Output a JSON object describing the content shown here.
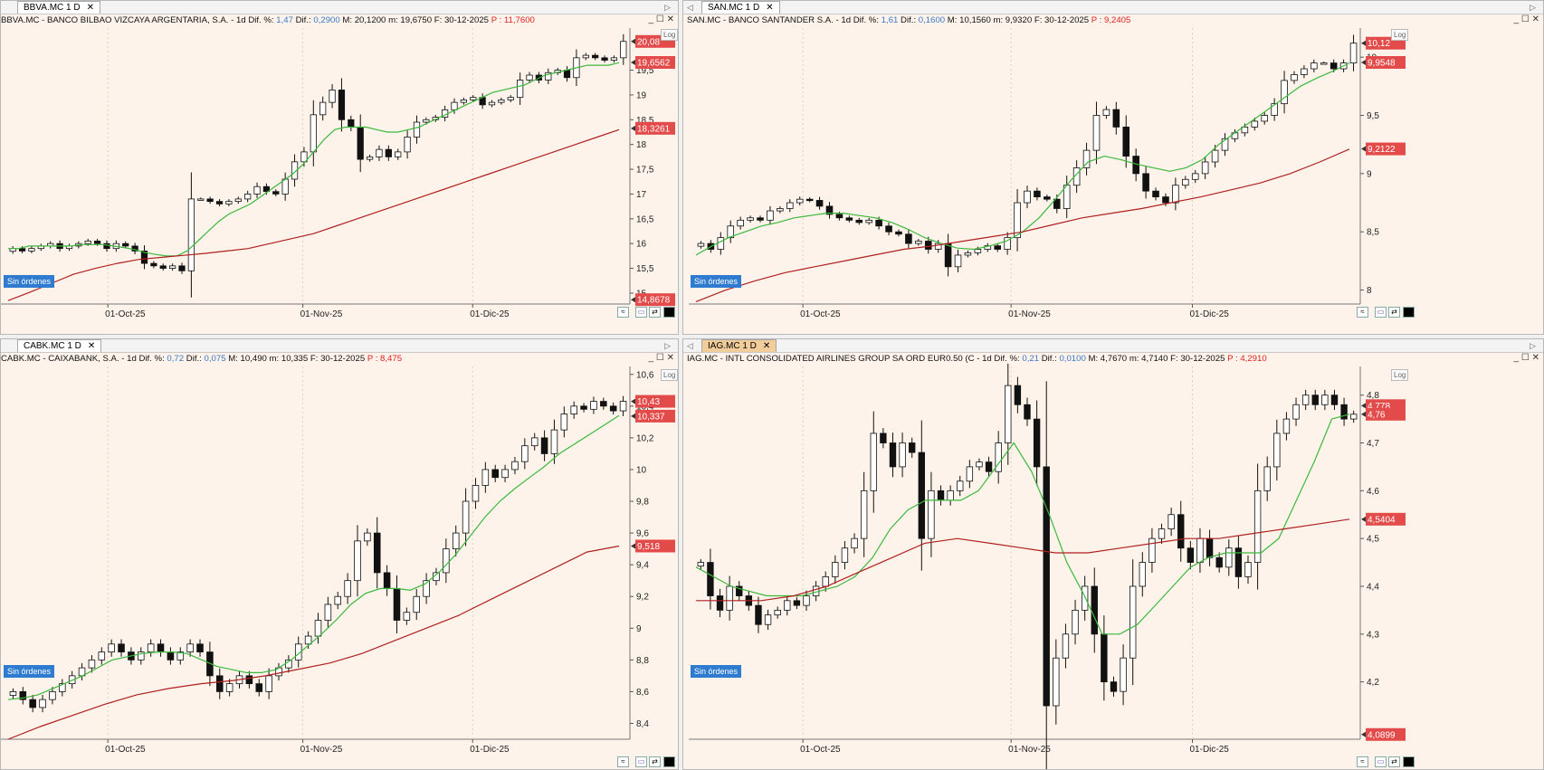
{
  "panels": [
    {
      "tab": "BBVA.MC 1 D",
      "header": {
        "name": "BBVA.MC - BANCO BILBAO VIZCAYA ARGENTARIA, S.A. - 1d",
        "dif_pct_label": "Dif. %:",
        "dif_pct": "1,47",
        "dif_label": "Dif.:",
        "dif": "0,2900",
        "max": "M: 20,1200",
        "min": "m: 19,6750",
        "date": "F: 30-12-2025",
        "price": "P : 11,7600"
      },
      "price_labels": [
        "20,08",
        "19,6562",
        "18,3261",
        "14,8678"
      ],
      "badge": "Sin órdenes",
      "log": "Log"
    },
    {
      "tab": "SAN.MC 1 D",
      "header": {
        "name": "SAN.MC - BANCO SANTANDER S.A. - 1d",
        "dif_pct_label": "Dif. %:",
        "dif_pct": "1,61",
        "dif_label": "Dif.:",
        "dif": "0,1600",
        "max": "M: 10,1560",
        "min": "m: 9,9320",
        "date": "F: 30-12-2025",
        "price": "P : 9,2405"
      },
      "price_labels": [
        "10,12",
        "9,9548",
        "9,2122"
      ],
      "badge": "Sin órdenes",
      "log": "Log"
    },
    {
      "tab": "CABK.MC 1 D",
      "header": {
        "name": "CABK.MC - CAIXABANK, S.A. - 1d",
        "dif_pct_label": "Dif. %:",
        "dif_pct": "0,72",
        "dif_label": "Dif.:",
        "dif": "0,075",
        "max": "M: 10,490",
        "min": "m: 10,335",
        "date": "F: 30-12-2025",
        "price": "P : 8,475"
      },
      "price_labels": [
        "10,43",
        "10,337",
        "9,518"
      ],
      "badge": "Sin órdenes",
      "log": "Log"
    },
    {
      "tab": "IAG.MC 1 D",
      "header": {
        "name": "IAG.MC - INTL CONSOLIDATED AIRLINES GROUP SA ORD EUR0.50 (C - 1d",
        "dif_pct_label": "Dif. %:",
        "dif_pct": "0,21",
        "dif_label": "Dif.:",
        "dif": "0,0100",
        "max": "M: 4,7670",
        "min": "m: 4,7140",
        "date": "F: 30-12-2025",
        "price": "P : 4,2910"
      },
      "price_labels": [
        "4,778",
        "4,76",
        "4,5404",
        "4,0899"
      ],
      "badge": "Sin órdenes",
      "log": "Log"
    }
  ],
  "chart_data": [
    {
      "type": "candlestick",
      "symbol": "BBVA.MC",
      "x_ticks": [
        "01-Oct-25",
        "01-Nov-25",
        "01-Dic-25"
      ],
      "y_ticks": [
        "15",
        "15,5",
        "16",
        "16,5",
        "17",
        "17,5",
        "18",
        "18,5",
        "19",
        "19,5"
      ],
      "ylim": [
        14.78,
        20.35
      ],
      "close_series": [
        15.9,
        15.85,
        15.9,
        15.95,
        16.0,
        15.9,
        15.95,
        16.0,
        16.05,
        16.0,
        15.9,
        16.0,
        15.95,
        15.85,
        15.6,
        15.55,
        15.5,
        15.55,
        15.45,
        16.9,
        16.9,
        16.85,
        16.8,
        16.85,
        16.9,
        17.0,
        17.15,
        17.05,
        17.0,
        17.3,
        17.65,
        17.85,
        18.6,
        18.85,
        19.1,
        18.5,
        18.35,
        17.7,
        17.75,
        17.9,
        17.75,
        17.85,
        18.15,
        18.45,
        18.5,
        18.55,
        18.7,
        18.85,
        18.9,
        18.95,
        18.8,
        18.85,
        18.9,
        18.95,
        19.3,
        19.4,
        19.3,
        19.45,
        19.5,
        19.35,
        19.75,
        19.8,
        19.75,
        19.7,
        19.75,
        20.08
      ],
      "ma_short": [
        15.9,
        15.9,
        15.95,
        15.95,
        15.95,
        15.95,
        15.95,
        15.98,
        15.98,
        15.98,
        15.95,
        15.92,
        15.88,
        15.82,
        15.78,
        15.75,
        15.75,
        15.85,
        16.05,
        16.25,
        16.45,
        16.6,
        16.7,
        16.8,
        16.95,
        17.1,
        17.25,
        17.4,
        17.6,
        17.85,
        18.1,
        18.3,
        18.35,
        18.35,
        18.35,
        18.3,
        18.25,
        18.25,
        18.3,
        18.35,
        18.45,
        18.55,
        18.65,
        18.75,
        18.85,
        18.95,
        19.05,
        19.1,
        19.15,
        19.2,
        19.3,
        19.4,
        19.45,
        19.5,
        19.55,
        19.6,
        19.6,
        19.6,
        19.65
      ],
      "ma_long": [
        14.85,
        15.02,
        15.2,
        15.38,
        15.5,
        15.6,
        15.68,
        15.72,
        15.76,
        15.8,
        15.85,
        15.9,
        16.0,
        16.1,
        16.2,
        16.35,
        16.5,
        16.65,
        16.8,
        16.95,
        17.1,
        17.25,
        17.4,
        17.55,
        17.7,
        17.85,
        18.0,
        18.15,
        18.3
      ]
    },
    {
      "type": "candlestick",
      "symbol": "SAN.MC",
      "x_ticks": [
        "01-Oct-25",
        "01-Nov-25",
        "01-Dic-25"
      ],
      "y_ticks": [
        "8",
        "8,5",
        "9",
        "9,5",
        "10"
      ],
      "ylim": [
        7.88,
        10.25
      ],
      "close_series": [
        8.4,
        8.35,
        8.45,
        8.55,
        8.6,
        8.62,
        8.6,
        8.68,
        8.7,
        8.75,
        8.78,
        8.77,
        8.72,
        8.65,
        8.62,
        8.6,
        8.58,
        8.6,
        8.55,
        8.5,
        8.48,
        8.4,
        8.42,
        8.35,
        8.4,
        8.2,
        8.3,
        8.32,
        8.35,
        8.38,
        8.35,
        8.45,
        8.75,
        8.85,
        8.8,
        8.78,
        8.7,
        8.9,
        9.05,
        9.2,
        9.5,
        9.55,
        9.4,
        9.15,
        9.0,
        8.85,
        8.8,
        8.75,
        8.9,
        8.95,
        9.0,
        9.1,
        9.2,
        9.3,
        9.35,
        9.4,
        9.45,
        9.5,
        9.6,
        9.8,
        9.85,
        9.9,
        9.95,
        9.95,
        9.9,
        9.95,
        10.12
      ],
      "ma_short": [
        8.3,
        8.38,
        8.45,
        8.5,
        8.55,
        8.58,
        8.62,
        8.64,
        8.66,
        8.66,
        8.64,
        8.62,
        8.58,
        8.52,
        8.45,
        8.4,
        8.36,
        8.35,
        8.38,
        8.42,
        8.5,
        8.62,
        8.78,
        8.95,
        9.1,
        9.15,
        9.12,
        9.08,
        9.05,
        9.02,
        9.05,
        9.12,
        9.25,
        9.35,
        9.45,
        9.55,
        9.65,
        9.75,
        9.82,
        9.88,
        9.95
      ],
      "ma_long": [
        7.9,
        8.0,
        8.08,
        8.15,
        8.2,
        8.25,
        8.3,
        8.35,
        8.38,
        8.42,
        8.46,
        8.5,
        8.56,
        8.62,
        8.66,
        8.7,
        8.75,
        8.8,
        8.86,
        8.92,
        9.0,
        9.1,
        9.21
      ]
    },
    {
      "type": "candlestick",
      "symbol": "CABK.MC",
      "x_ticks": [
        "01-Oct-25",
        "01-Nov-25",
        "01-Dic-25"
      ],
      "y_ticks": [
        "8,4",
        "8,6",
        "8,8",
        "9",
        "9,2",
        "9,4",
        "9,6",
        "9,8",
        "10",
        "10,2",
        "10,4",
        "10,6"
      ],
      "ylim": [
        8.3,
        10.65
      ],
      "close_series": [
        8.6,
        8.55,
        8.5,
        8.55,
        8.6,
        8.65,
        8.7,
        8.75,
        8.8,
        8.85,
        8.9,
        8.85,
        8.8,
        8.85,
        8.9,
        8.85,
        8.8,
        8.85,
        8.9,
        8.85,
        8.7,
        8.6,
        8.65,
        8.7,
        8.65,
        8.6,
        8.7,
        8.75,
        8.8,
        8.9,
        8.95,
        9.05,
        9.15,
        9.2,
        9.3,
        9.55,
        9.6,
        9.35,
        9.25,
        9.05,
        9.1,
        9.2,
        9.3,
        9.35,
        9.5,
        9.6,
        9.8,
        9.9,
        10.0,
        9.95,
        10.0,
        10.05,
        10.15,
        10.2,
        10.1,
        10.25,
        10.35,
        10.4,
        10.38,
        10.43,
        10.4,
        10.37,
        10.43
      ],
      "ma_short": [
        8.55,
        8.56,
        8.58,
        8.62,
        8.66,
        8.7,
        8.75,
        8.8,
        8.82,
        8.84,
        8.85,
        8.85,
        8.84,
        8.8,
        8.76,
        8.74,
        8.72,
        8.72,
        8.74,
        8.8,
        8.88,
        8.96,
        9.05,
        9.15,
        9.22,
        9.25,
        9.25,
        9.24,
        9.28,
        9.36,
        9.46,
        9.58,
        9.7,
        9.8,
        9.88,
        9.95,
        10.02,
        10.1,
        10.16,
        10.22,
        10.28,
        10.34
      ],
      "ma_long": [
        8.3,
        8.38,
        8.45,
        8.52,
        8.58,
        8.62,
        8.65,
        8.67,
        8.7,
        8.74,
        8.78,
        8.84,
        8.92,
        9.0,
        9.08,
        9.18,
        9.28,
        9.38,
        9.48,
        9.518
      ]
    },
    {
      "type": "candlestick",
      "symbol": "IAG.MC",
      "x_ticks": [
        "01-Oct-25",
        "01-Nov-25",
        "01-Dic-25"
      ],
      "y_ticks": [
        "4,2",
        "4,3",
        "4,4",
        "4,5",
        "4,6",
        "4,7",
        "4,8"
      ],
      "ylim": [
        4.08,
        4.86
      ],
      "close_series": [
        4.45,
        4.38,
        4.35,
        4.4,
        4.38,
        4.36,
        4.32,
        4.34,
        4.35,
        4.37,
        4.36,
        4.38,
        4.4,
        4.42,
        4.45,
        4.48,
        4.5,
        4.6,
        4.72,
        4.7,
        4.65,
        4.7,
        4.68,
        4.5,
        4.6,
        4.58,
        4.6,
        4.62,
        4.65,
        4.66,
        4.64,
        4.7,
        4.82,
        4.78,
        4.75,
        4.65,
        4.15,
        4.25,
        4.3,
        4.35,
        4.4,
        4.3,
        4.2,
        4.18,
        4.25,
        4.4,
        4.45,
        4.5,
        4.52,
        4.55,
        4.48,
        4.45,
        4.5,
        4.46,
        4.44,
        4.48,
        4.42,
        4.45,
        4.6,
        4.65,
        4.72,
        4.75,
        4.78,
        4.8,
        4.78,
        4.8,
        4.78,
        4.75,
        4.76
      ],
      "ma_short": [
        4.44,
        4.42,
        4.4,
        4.39,
        4.38,
        4.38,
        4.38,
        4.39,
        4.4,
        4.42,
        4.46,
        4.52,
        4.56,
        4.58,
        4.58,
        4.58,
        4.6,
        4.65,
        4.7,
        4.64,
        4.55,
        4.45,
        4.38,
        4.3,
        4.3,
        4.32,
        4.36,
        4.4,
        4.44,
        4.46,
        4.47,
        4.47,
        4.47,
        4.5,
        4.58,
        4.66,
        4.75,
        4.76
      ],
      "ma_long": [
        4.37,
        4.37,
        4.37,
        4.38,
        4.4,
        4.43,
        4.46,
        4.49,
        4.5,
        4.49,
        4.48,
        4.47,
        4.47,
        4.48,
        4.49,
        4.5,
        4.5,
        4.51,
        4.52,
        4.53,
        4.5404
      ]
    }
  ],
  "colors": {
    "ma_short": "#3cb83c",
    "ma_long": "#b02020",
    "label_bg": "#e34b4b",
    "bg": "#fdf3ea",
    "badge": "#2f7bd0"
  }
}
